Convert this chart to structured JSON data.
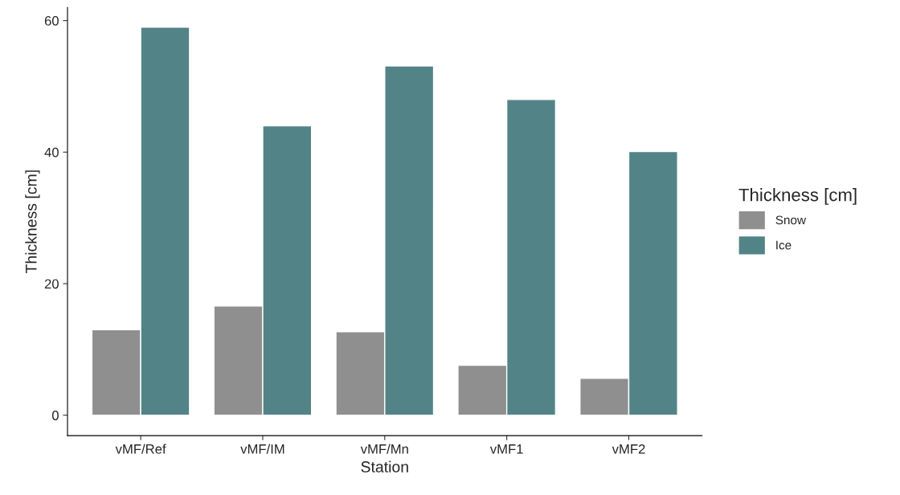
{
  "chart_data": {
    "type": "bar",
    "xlabel": "Station",
    "ylabel": "Thickness [cm]",
    "legend_title": "Thickness [cm]",
    "categories": [
      "vMF/Ref",
      "vMF/IM",
      "vMF/Mn",
      "vMF1",
      "vMF2"
    ],
    "series": [
      {
        "name": "Snow",
        "color": "#8f8f8f",
        "values": [
          13.0,
          16.6,
          12.7,
          7.6,
          5.6
        ]
      },
      {
        "name": "Ice",
        "color": "#528487",
        "values": [
          59.0,
          44.0,
          53.1,
          48.0,
          40.1
        ]
      }
    ],
    "ylim": [
      -3.1,
      62
    ],
    "yticks": [
      0,
      20,
      40,
      60
    ],
    "grid": false,
    "legend": "right"
  }
}
